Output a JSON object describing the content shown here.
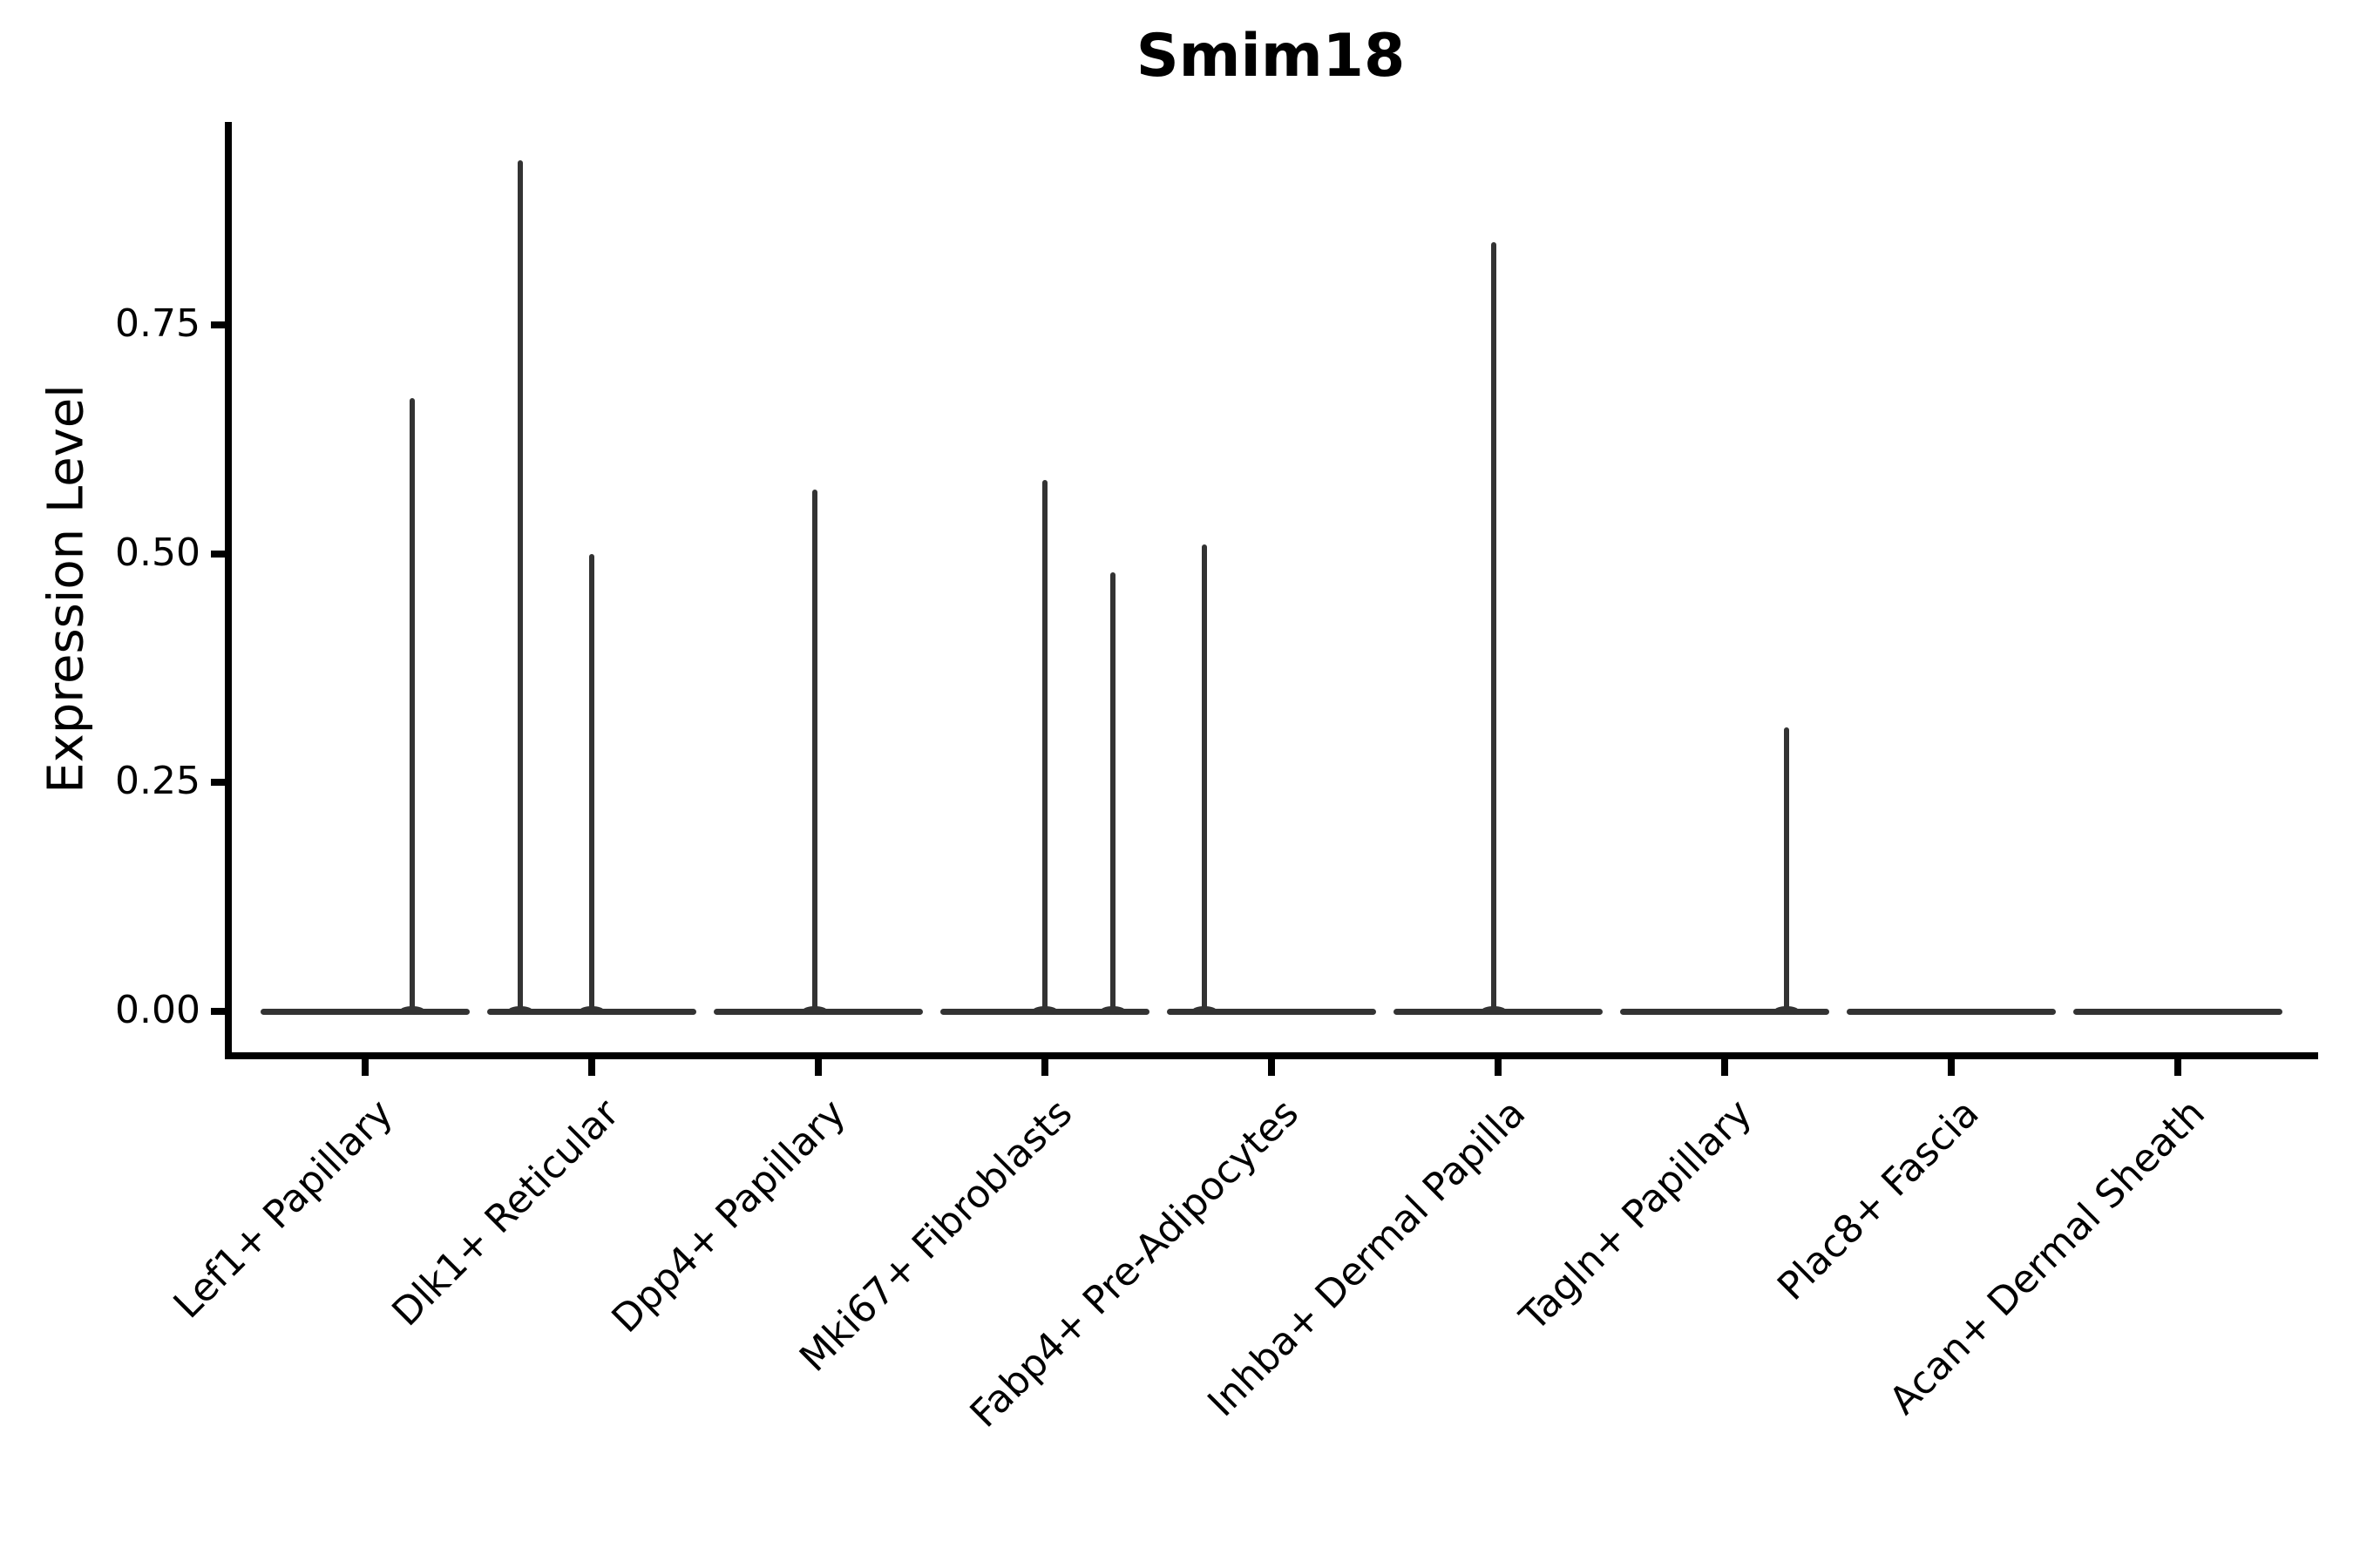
{
  "chart_data": {
    "type": "violin",
    "title": "Smim18",
    "xlabel": "",
    "ylabel": "Expression Level",
    "ylim": [
      -0.05,
      0.97
    ],
    "grid": false,
    "legend_position": "none",
    "y_ticks": {
      "values": [
        0,
        0.25,
        0.5,
        0.75
      ],
      "labels": [
        "0.00",
        "0.25",
        "0.50",
        "0.75"
      ]
    },
    "categories": [
      "Lef1+ Papillary",
      "Dlk1+ Reticular",
      "Dpp4+ Papillary",
      "Mki67+ Fibroblasts",
      "Fabp4+ Pre-Adipocytes",
      "Inhba+ Dermal Papilla",
      "Tagln+ Papillary",
      "Plac8+ Fascia",
      "Acan+ Dermal Sheath"
    ],
    "series": [
      {
        "category": "Lef1+ Papillary",
        "baseline_value": 0,
        "spikes": [
          {
            "value": 0.67,
            "x_offset_frac": 0.208
          }
        ]
      },
      {
        "category": "Dlk1+ Reticular",
        "baseline_value": 0,
        "spikes": [
          {
            "value": 0.93,
            "x_offset_frac": -0.315
          },
          {
            "value": 0.5,
            "x_offset_frac": 0.0
          }
        ]
      },
      {
        "category": "Dpp4+ Papillary",
        "baseline_value": 0,
        "spikes": [
          {
            "value": 0.57,
            "x_offset_frac": -0.015
          }
        ]
      },
      {
        "category": "Mki67+ Fibroblasts",
        "baseline_value": 0,
        "spikes": [
          {
            "value": 0.58,
            "x_offset_frac": 0.0
          },
          {
            "value": 0.48,
            "x_offset_frac": 0.3
          }
        ]
      },
      {
        "category": "Fabp4+ Pre-Adipocytes",
        "baseline_value": 0,
        "spikes": [
          {
            "value": 0.51,
            "x_offset_frac": -0.296
          }
        ]
      },
      {
        "category": "Inhba+ Dermal Papilla",
        "baseline_value": 0,
        "spikes": [
          {
            "value": 0.84,
            "x_offset_frac": -0.019
          }
        ]
      },
      {
        "category": "Tagln+ Papillary",
        "baseline_value": 0,
        "spikes": [
          {
            "value": 0.31,
            "x_offset_frac": 0.273
          }
        ]
      },
      {
        "category": "Plac8+ Fascia",
        "baseline_value": 0,
        "spikes": []
      },
      {
        "category": "Acan+ Dermal Sheath",
        "baseline_value": 0,
        "spikes": []
      }
    ],
    "colors": {
      "violin_stroke": "#333333",
      "axis": "#000000",
      "text": "#000000",
      "background": "#ffffff"
    }
  }
}
